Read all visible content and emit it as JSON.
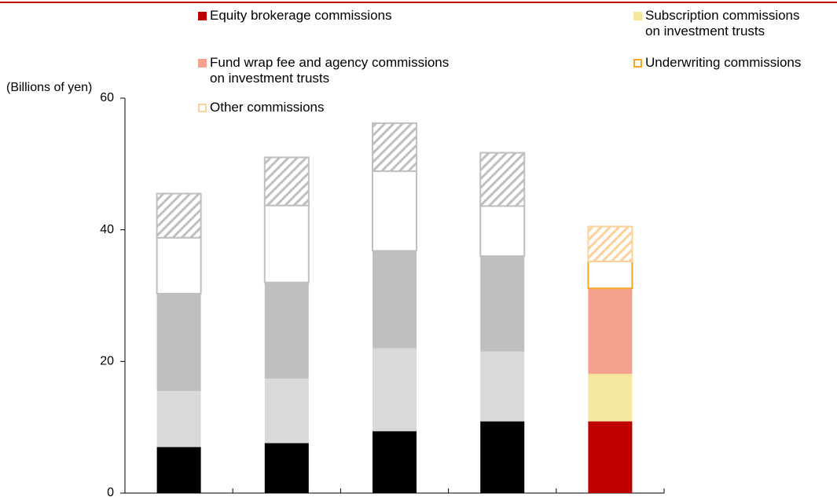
{
  "chart_data": {
    "type": "stacked_bar",
    "y_label": "(Billions of yen)",
    "categories": [
      null,
      null,
      null,
      null,
      null
    ],
    "ylim": [
      0,
      60
    ],
    "yticks": [
      0,
      20,
      40,
      60
    ],
    "series": [
      {
        "name": "Equity brokerage commissions",
        "color": "#c00000",
        "colors": [
          "#000000",
          "#000000",
          "#000000",
          "#000000",
          "#c00000"
        ],
        "values": [
          7.0,
          7.6,
          9.4,
          10.9,
          10.9
        ]
      },
      {
        "name": "Subscription commissions\non investment trusts",
        "color": "#f5e79e",
        "colors": [
          "#d9d9d9",
          "#d9d9d9",
          "#d9d9d9",
          "#d9d9d9",
          "#f5e79e"
        ],
        "values": [
          8.5,
          9.8,
          12.6,
          10.6,
          7.2
        ]
      },
      {
        "name": "Fund wrap fee and agency commissions\non investment trusts",
        "color": "#f4a18f",
        "colors": [
          "#bfbfbf",
          "#bfbfbf",
          "#bfbfbf",
          "#bfbfbf",
          "#f4a18f"
        ],
        "values": [
          14.8,
          14.6,
          14.8,
          14.5,
          13.0
        ]
      },
      {
        "name": "Underwriting commissions",
        "color": "#f5a623",
        "outline": true,
        "colors": [
          "#bfbfbf",
          "#bfbfbf",
          "#bfbfbf",
          "#bfbfbf",
          "#f5a623"
        ],
        "values": [
          8.5,
          11.7,
          12.1,
          7.6,
          4.1
        ]
      },
      {
        "name": "Other commissions",
        "color": "#fcd29a",
        "outline": true,
        "hatched": true,
        "colors": [
          "#bfbfbf",
          "#bfbfbf",
          "#bfbfbf",
          "#bfbfbf",
          "#fcd29a"
        ],
        "values": [
          6.7,
          7.3,
          7.3,
          8.1,
          5.3
        ]
      }
    ]
  }
}
